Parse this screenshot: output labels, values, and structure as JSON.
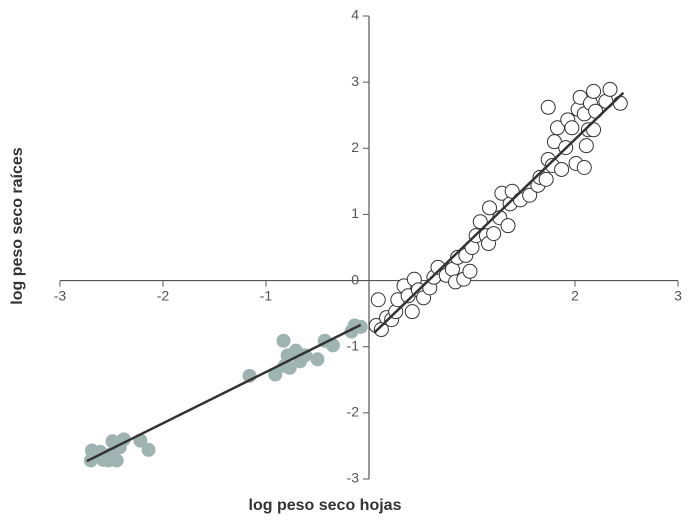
{
  "chart_data": {
    "type": "scatter",
    "xlabel": "log peso seco hojas",
    "ylabel": "log peso seco raíces",
    "xlim": [
      -3,
      3
    ],
    "ylim": [
      -3,
      4
    ],
    "xticks": [
      -3,
      -2,
      -1,
      2,
      3
    ],
    "yticks": [
      -3,
      -2,
      -1,
      0,
      1,
      2,
      3,
      4
    ],
    "series": [
      {
        "color": "#9fb3b3",
        "marker": "filled",
        "x": [
          -2.69,
          -2.7,
          -2.61,
          -2.58,
          -2.51,
          -2.49,
          -2.45,
          -2.42,
          -2.38,
          -2.53,
          -2.22,
          -2.14,
          -1.16,
          -0.91,
          -0.83,
          -0.79,
          -0.77,
          -0.71,
          -0.67,
          -0.62,
          -0.5,
          -0.43,
          -0.35,
          -0.17,
          -0.14,
          -0.08,
          -0.82
        ],
        "y": [
          -2.57,
          -2.72,
          -2.59,
          -2.71,
          -2.63,
          -2.43,
          -2.72,
          -2.52,
          -2.4,
          -2.72,
          -2.42,
          -2.56,
          -1.44,
          -1.42,
          -0.91,
          -1.13,
          -1.32,
          -1.06,
          -1.22,
          -1.13,
          -1.19,
          -0.91,
          -0.98,
          -0.77,
          -0.68,
          -0.7,
          -1.29
        ]
      },
      {
        "color": "#ffffff",
        "marker": "open",
        "x": [
          0.09,
          0.07,
          0.12,
          0.17,
          0.22,
          0.26,
          0.28,
          0.34,
          0.38,
          0.42,
          0.44,
          0.48,
          0.53,
          0.59,
          0.63,
          0.67,
          0.75,
          0.81,
          0.84,
          0.86,
          0.92,
          0.94,
          0.98,
          1.0,
          1.04,
          1.08,
          1.14,
          1.16,
          1.17,
          1.21,
          1.27,
          1.29,
          1.35,
          1.37,
          1.39,
          1.47,
          1.56,
          1.64,
          1.66,
          1.72,
          1.74,
          1.78,
          1.8,
          1.83,
          1.87,
          1.91,
          1.74,
          1.93,
          1.97,
          2.01,
          2.03,
          2.05,
          2.09,
          2.11,
          2.13,
          2.15,
          2.18,
          2.2,
          2.3,
          2.34,
          2.44,
          2.09,
          2.18
        ],
        "y": [
          -0.29,
          -0.68,
          -0.74,
          -0.56,
          -0.59,
          -0.47,
          -0.29,
          -0.08,
          -0.23,
          -0.47,
          0.02,
          -0.14,
          -0.26,
          -0.11,
          0.05,
          0.2,
          0.08,
          0.17,
          -0.02,
          0.35,
          0.02,
          0.38,
          0.14,
          0.5,
          0.68,
          0.89,
          0.68,
          0.56,
          1.1,
          0.71,
          0.95,
          1.32,
          0.83,
          1.16,
          1.35,
          1.22,
          1.29,
          1.44,
          1.56,
          1.53,
          1.83,
          1.74,
          2.1,
          2.31,
          1.68,
          2.01,
          2.62,
          2.43,
          2.31,
          1.77,
          2.59,
          2.77,
          2.52,
          2.04,
          2.28,
          2.68,
          2.86,
          2.56,
          2.71,
          2.89,
          2.68,
          1.71,
          2.28
        ]
      }
    ],
    "fits": [
      {
        "color": "#333333",
        "x": [
          -2.74,
          -0.08
        ],
        "y": [
          -2.73,
          -0.67
        ]
      },
      {
        "color": "#333333",
        "x": [
          0.05,
          2.47
        ],
        "y": [
          -0.79,
          2.84
        ]
      }
    ]
  }
}
